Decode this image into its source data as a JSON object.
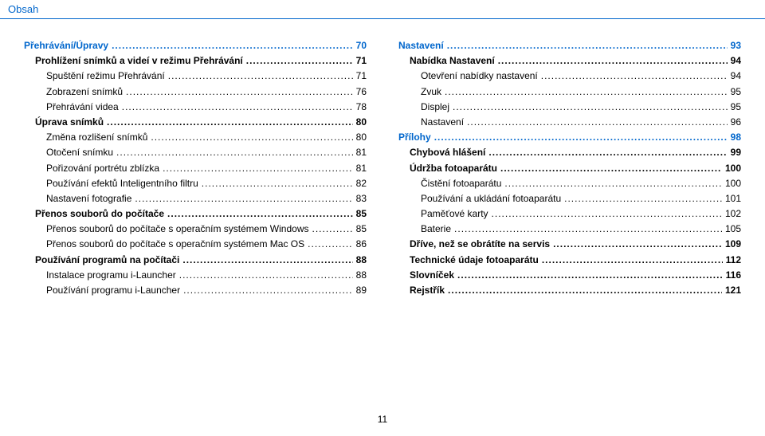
{
  "header": "Obsah",
  "pageNumber": "11",
  "colors": {
    "accent": "#0066cc",
    "text": "#000000",
    "background": "#ffffff"
  },
  "left": [
    {
      "level": 0,
      "label": "Přehrávání/Úpravy",
      "page": "70"
    },
    {
      "level": 1,
      "label": "Prohlížení snímků a videí v režimu Přehrávání",
      "page": "71"
    },
    {
      "level": 2,
      "label": "Spuštění režimu Přehrávání",
      "page": "71"
    },
    {
      "level": 2,
      "label": "Zobrazení snímků",
      "page": "76"
    },
    {
      "level": 2,
      "label": "Přehrávání videa",
      "page": "78"
    },
    {
      "level": 1,
      "label": "Úprava snímků",
      "page": "80"
    },
    {
      "level": 2,
      "label": "Změna rozlišení snímků",
      "page": "80"
    },
    {
      "level": 2,
      "label": "Otočení snímku",
      "page": "81"
    },
    {
      "level": 2,
      "label": "Pořizování portrétu zblízka",
      "page": "81"
    },
    {
      "level": 2,
      "label": "Používání efektů Inteligentního filtru",
      "page": "82"
    },
    {
      "level": 2,
      "label": "Nastavení fotografie",
      "page": "83"
    },
    {
      "level": 1,
      "label": "Přenos souborů do počítače",
      "page": "85"
    },
    {
      "level": 2,
      "label": "Přenos souborů do počítače s operačním systémem Windows",
      "page": "85"
    },
    {
      "level": 2,
      "label": "Přenos souborů do počítače s operačním systémem Mac OS",
      "page": "86"
    },
    {
      "level": 1,
      "label": "Používání programů na počítači",
      "page": "88"
    },
    {
      "level": 2,
      "label": "Instalace programu i-Launcher",
      "page": "88"
    },
    {
      "level": 2,
      "label": "Používání programu i-Launcher",
      "page": "89"
    }
  ],
  "right": [
    {
      "level": 0,
      "label": "Nastavení",
      "page": "93"
    },
    {
      "level": 1,
      "label": "Nabídka Nastavení",
      "page": "94"
    },
    {
      "level": 2,
      "label": "Otevření nabídky nastavení",
      "page": "94"
    },
    {
      "level": 2,
      "label": "Zvuk",
      "page": "95"
    },
    {
      "level": 2,
      "label": "Displej",
      "page": "95"
    },
    {
      "level": 2,
      "label": "Nastavení",
      "page": "96"
    },
    {
      "level": 0,
      "label": "Přílohy",
      "page": "98"
    },
    {
      "level": 1,
      "label": "Chybová hlášení",
      "page": "99"
    },
    {
      "level": 1,
      "label": "Údržba fotoaparátu",
      "page": "100"
    },
    {
      "level": 2,
      "label": "Čistění fotoaparátu",
      "page": "100"
    },
    {
      "level": 2,
      "label": "Používání a ukládání fotoaparátu",
      "page": "101"
    },
    {
      "level": 2,
      "label": "Paměťové karty",
      "page": "102"
    },
    {
      "level": 2,
      "label": "Baterie",
      "page": "105"
    },
    {
      "level": 1,
      "label": "Dříve, než se obrátíte na servis",
      "page": "109"
    },
    {
      "level": 1,
      "label": "Technické údaje fotoaparátu",
      "page": "112"
    },
    {
      "level": 1,
      "label": "Slovníček",
      "page": "116"
    },
    {
      "level": 1,
      "label": "Rejstřík",
      "page": "121"
    }
  ]
}
